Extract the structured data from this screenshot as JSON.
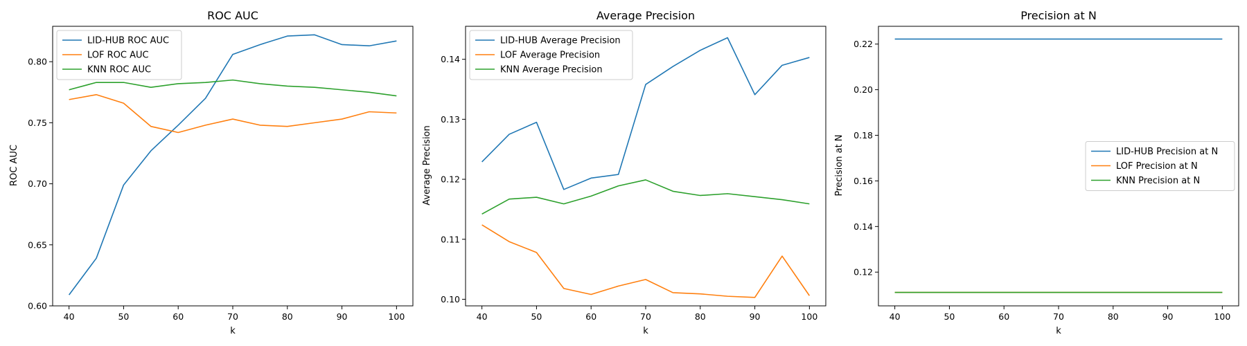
{
  "chart_data": [
    {
      "type": "line",
      "title": "ROC AUC",
      "xlabel": "k",
      "ylabel": "ROC AUC",
      "x": [
        40,
        45,
        50,
        55,
        60,
        65,
        70,
        75,
        80,
        85,
        90,
        95,
        100
      ],
      "xlim": [
        37,
        103
      ],
      "ylim": [
        0.6,
        0.829
      ],
      "xticks": [
        40,
        50,
        60,
        70,
        80,
        90,
        100
      ],
      "yticks": [
        0.6,
        0.65,
        0.7,
        0.75,
        0.8
      ],
      "ytick_decimals": 2,
      "grid": false,
      "legend": "upper-left",
      "series": [
        {
          "name": "LID-HUB ROC AUC",
          "color": "#1f77b4",
          "values": [
            0.609,
            0.639,
            0.699,
            0.727,
            0.748,
            0.77,
            0.806,
            0.814,
            0.821,
            0.822,
            0.814,
            0.813,
            0.817
          ]
        },
        {
          "name": "LOF ROC AUC",
          "color": "#ff7f0e",
          "values": [
            0.769,
            0.773,
            0.766,
            0.747,
            0.742,
            0.748,
            0.753,
            0.748,
            0.747,
            0.75,
            0.753,
            0.759,
            0.758
          ]
        },
        {
          "name": "KNN ROC AUC",
          "color": "#2ca02c",
          "values": [
            0.777,
            0.783,
            0.783,
            0.779,
            0.782,
            0.783,
            0.785,
            0.782,
            0.78,
            0.779,
            0.777,
            0.775,
            0.772
          ]
        }
      ]
    },
    {
      "type": "line",
      "title": "Average Precision",
      "xlabel": "k",
      "ylabel": "Average Precision",
      "x": [
        40,
        45,
        50,
        55,
        60,
        65,
        70,
        75,
        80,
        85,
        90,
        95,
        100
      ],
      "xlim": [
        37,
        103
      ],
      "ylim": [
        0.0989,
        0.1455
      ],
      "xticks": [
        40,
        50,
        60,
        70,
        80,
        90,
        100
      ],
      "yticks": [
        0.1,
        0.11,
        0.12,
        0.13,
        0.14
      ],
      "ytick_decimals": 2,
      "grid": false,
      "legend": "upper-left",
      "series": [
        {
          "name": "LID-HUB Average Precision",
          "color": "#1f77b4",
          "values": [
            0.1229,
            0.1275,
            0.1295,
            0.1183,
            0.1202,
            0.1208,
            0.1358,
            0.1388,
            0.1415,
            0.1436,
            0.1341,
            0.139,
            0.1403
          ]
        },
        {
          "name": "LOF Average Precision",
          "color": "#ff7f0e",
          "values": [
            0.1124,
            0.1096,
            0.1078,
            0.1018,
            0.1008,
            0.1022,
            0.1033,
            0.1011,
            0.1009,
            0.1005,
            0.1003,
            0.1072,
            0.1006
          ]
        },
        {
          "name": "KNN Average Precision",
          "color": "#2ca02c",
          "values": [
            0.1142,
            0.1167,
            0.117,
            0.1159,
            0.1172,
            0.1189,
            0.1199,
            0.118,
            0.1173,
            0.1176,
            0.1171,
            0.1166,
            0.1159
          ]
        }
      ]
    },
    {
      "type": "line",
      "title": "Precision at N",
      "xlabel": "k",
      "ylabel": "Precision at N",
      "x": [
        40,
        45,
        50,
        55,
        60,
        65,
        70,
        75,
        80,
        85,
        90,
        95,
        100
      ],
      "xlim": [
        37,
        103
      ],
      "ylim": [
        0.1052,
        0.2278
      ],
      "xticks": [
        40,
        50,
        60,
        70,
        80,
        90,
        100
      ],
      "yticks": [
        0.12,
        0.14,
        0.16,
        0.18,
        0.2,
        0.22
      ],
      "ytick_decimals": 2,
      "grid": false,
      "legend": "center-right",
      "series": [
        {
          "name": "LID-HUB Precision at N",
          "color": "#1f77b4",
          "values": [
            0.2222,
            0.2222,
            0.2222,
            0.2222,
            0.2222,
            0.2222,
            0.2222,
            0.2222,
            0.2222,
            0.2222,
            0.2222,
            0.2222,
            0.2222
          ]
        },
        {
          "name": "LOF Precision at N",
          "color": "#ff7f0e",
          "values": [
            0.1111,
            0.1111,
            0.1111,
            0.1111,
            0.1111,
            0.1111,
            0.1111,
            0.1111,
            0.1111,
            0.1111,
            0.1111,
            0.1111,
            0.1111
          ]
        },
        {
          "name": "KNN Precision at N",
          "color": "#2ca02c",
          "values": [
            0.1111,
            0.1111,
            0.1111,
            0.1111,
            0.1111,
            0.1111,
            0.1111,
            0.1111,
            0.1111,
            0.1111,
            0.1111,
            0.1111,
            0.1111
          ]
        }
      ]
    }
  ]
}
